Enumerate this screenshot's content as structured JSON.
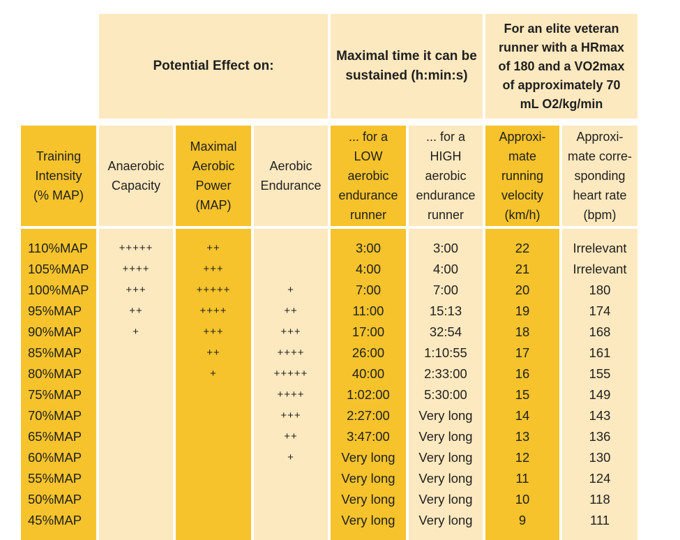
{
  "header": {
    "potential_effect": "Potential Effect on:",
    "maximal_time": "Maximal time it can be sustained (h:min:s)",
    "elite_runner_lines": [
      "For an elite veteran",
      "runner with a HRmax",
      "of 180 and a VO2max",
      "of approximately 70",
      "mL O2/kg/min"
    ]
  },
  "columns": {
    "training_intensity": [
      "Training",
      "Intensity",
      "(% MAP)"
    ],
    "anaerobic_capacity": [
      "Anaerobic",
      "Capacity"
    ],
    "maximal_aerobic_power": [
      "Maximal",
      "Aerobic",
      "Power",
      "(MAP)"
    ],
    "aerobic_endurance": [
      "Aerobic",
      "Endurance"
    ],
    "low_runner": [
      "... for a",
      "LOW",
      "aerobic",
      "endurance",
      "runner"
    ],
    "high_runner": [
      "... for a",
      "HIGH",
      "aerobic",
      "endurance",
      "runner"
    ],
    "velocity": [
      "Approxi-",
      "mate",
      "running",
      "velocity",
      "(km/h)"
    ],
    "heart_rate": [
      "Approxi-",
      "mate corre-",
      "sponding",
      "heart rate",
      "(bpm)"
    ]
  },
  "rows": {
    "intensity": [
      "110%MAP",
      "105%MAP",
      "100%MAP",
      "95%MAP",
      "90%MAP",
      "85%MAP",
      "80%MAP",
      "75%MAP",
      "70%MAP",
      "65%MAP",
      "60%MAP",
      "55%MAP",
      "50%MAP",
      "45%MAP"
    ],
    "anaerobic": [
      "+++++",
      "++++",
      "+++",
      "++",
      "+",
      "",
      "",
      "",
      "",
      "",
      "",
      "",
      "",
      ""
    ],
    "map": [
      "++",
      "+++",
      "+++++",
      "++++",
      "+++",
      "++",
      "+",
      "",
      "",
      "",
      "",
      "",
      "",
      ""
    ],
    "aerobic_endurance": [
      "",
      "",
      "+",
      "++",
      "+++",
      "++++",
      "+++++",
      "++++",
      "+++",
      "++",
      "+",
      "",
      "",
      ""
    ],
    "low_time": [
      "3:00",
      "4:00",
      "7:00",
      "11:00",
      "17:00",
      "26:00",
      "40:00",
      "1:02:00",
      "2:27:00",
      "3:47:00",
      "Very long",
      "Very long",
      "Very long",
      "Very long"
    ],
    "high_time": [
      "3:00",
      "4:00",
      "7:00",
      "15:13",
      "32:54",
      "1:10:55",
      "2:33:00",
      "5:30:00",
      "Very long",
      "Very long",
      "Very long",
      "Very long",
      "Very long",
      "Very long"
    ],
    "velocity": [
      "22",
      "21",
      "20",
      "19",
      "18",
      "17",
      "16",
      "15",
      "14",
      "13",
      "12",
      "11",
      "10",
      "9"
    ],
    "heart_rate": [
      "Irrelevant",
      "Irrelevant",
      "180",
      "174",
      "168",
      "161",
      "155",
      "149",
      "143",
      "136",
      "130",
      "124",
      "118",
      "111"
    ]
  },
  "colors": {
    "orange": "#f6c32c",
    "light": "#fde9bf"
  }
}
